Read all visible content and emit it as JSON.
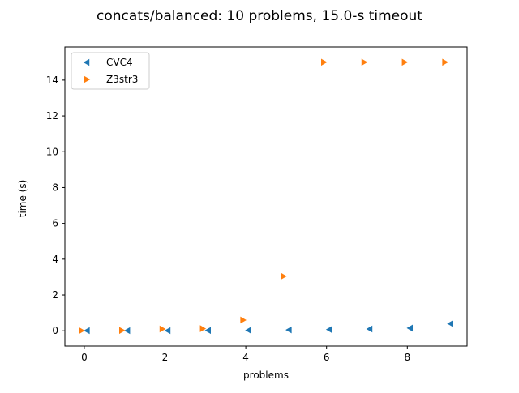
{
  "chart_data": {
    "type": "scatter",
    "title": "concats/balanced: 10 problems, 15.0-s timeout",
    "xlabel": "problems",
    "ylabel": "time (s)",
    "xlim": [
      -0.48,
      9.48
    ],
    "ylim": [
      -0.85,
      15.85
    ],
    "xticks": [
      0,
      2,
      4,
      6,
      8
    ],
    "yticks": [
      0,
      2,
      4,
      6,
      8,
      10,
      12,
      14
    ],
    "grid": false,
    "legend_position": "top-left",
    "series": [
      {
        "name": "CVC4",
        "marker": "triangle-left",
        "color": "#1f77b4",
        "x": [
          0,
          1,
          2,
          3,
          4,
          5,
          6,
          7,
          8,
          9
        ],
        "y": [
          0.01,
          0.01,
          0.01,
          0.02,
          0.03,
          0.05,
          0.07,
          0.1,
          0.15,
          0.4
        ]
      },
      {
        "name": "Z3str3",
        "marker": "triangle-right",
        "color": "#ff7f0e",
        "x": [
          0,
          1,
          2,
          3,
          4,
          5,
          6,
          7,
          8,
          9
        ],
        "y": [
          0.01,
          0.02,
          0.1,
          0.12,
          0.6,
          3.05,
          15.0,
          15.0,
          15.0,
          15.0
        ]
      }
    ]
  }
}
